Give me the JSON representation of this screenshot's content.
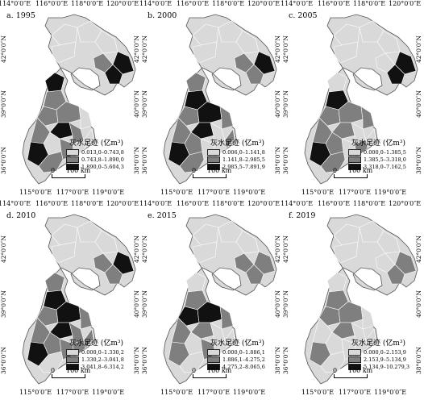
{
  "axes": {
    "top_ticks": [
      "114°0′0″E",
      "116°0′0″E",
      "118°0′0″E",
      "120°0′0″E"
    ],
    "bottom_ticks": [
      "115°0′0″E",
      "117°0′0″E",
      "119°0′0″E"
    ],
    "right_ticks": [
      "42°0′0″N",
      "40°0′0″N",
      "38°0′0″N"
    ],
    "left_ticks": [
      "42°0′0″N",
      "39°0′0″N",
      "36°0′0″N"
    ]
  },
  "legend_title": "灰水足迹 (亿m³)",
  "scale": {
    "zero": "0",
    "label": "100 km"
  },
  "colors": {
    "light": "#d9d9d9",
    "medium": "#7f7f7f",
    "dark": "#111111"
  },
  "panels": [
    {
      "label": "a. 1995",
      "legend": [
        "0.013,0–0.743,8",
        "0.743,8–1.890,0",
        "1.890,0–5.604,3"
      ]
    },
    {
      "label": "b. 2000",
      "legend": [
        "0.006,0–1.141,8",
        "1.141,8–2.985,5",
        "2.985,5–7.891,9"
      ]
    },
    {
      "label": "c. 2005",
      "legend": [
        "0.000,0–1.385,5",
        "1.385,5–3.318,0",
        "3.318,0–7.162,5"
      ]
    },
    {
      "label": "d. 2010",
      "legend": [
        "0.000,0–1.330,2",
        "1.330,2–3.041,8",
        "3.041,8–6.314,2"
      ]
    },
    {
      "label": "e. 2015",
      "legend": [
        "0.000,0–1.886,1",
        "1.886,1–4.275,2",
        "4.275,2–8.065,6"
      ]
    },
    {
      "label": "f. 2019",
      "legend": [
        "0.000,0–2.153,9",
        "2.153,9–5.134,9",
        "5.134,9–10.279,3"
      ]
    }
  ]
}
